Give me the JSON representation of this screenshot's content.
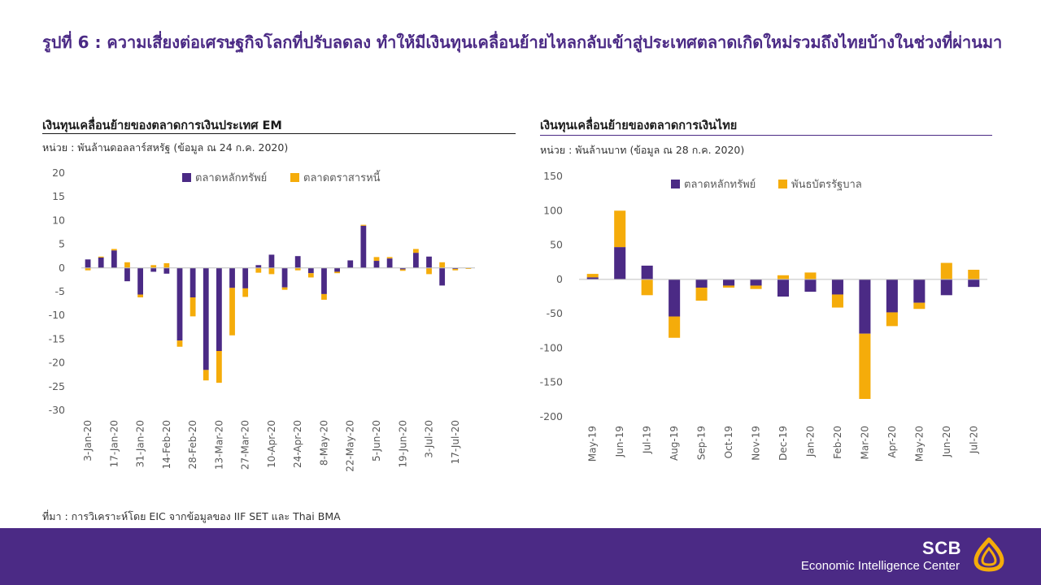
{
  "page": {
    "title": "รูปที่ 6 : ความเสี่ยงต่อเศรษฐกิจโลกที่ปรับลดลง ทำให้มีเงินทุนเคลื่อนย้ายไหลกลับเข้าสู่ประเทศตลาดเกิดใหม่รวมถึงไทยบ้างในช่วงที่ผ่านมา",
    "source": "ที่มา : การวิเคราะห์โดย EIC จากข้อมูลของ IIF SET และ Thai BMA"
  },
  "colors": {
    "primary": "#4b2a85",
    "secondary": "#f5ac0a",
    "footer_bg": "#4b2a85"
  },
  "brand": {
    "name": "SCB",
    "unit": "Economic Intelligence Center",
    "logo_icon": "scb-logo-icon"
  },
  "chart_data": [
    {
      "type": "bar",
      "stacked": true,
      "title": "เงินทุนเคลื่อนย้ายของตลาดการเงินประเทศ EM",
      "unit_note": "หน่วย : พันล้านดอลลาร์สหรัฐ (ข้อมูล ณ 24 ก.ค. 2020)",
      "xlabel": "",
      "ylabel": "",
      "ylim": [
        -30,
        20
      ],
      "yticks": [
        20,
        15,
        10,
        5,
        0,
        -5,
        -10,
        -15,
        -20,
        -25,
        -30
      ],
      "legend_position": "top",
      "grid": false,
      "tick_labels": [
        "3-Jan-20",
        "17-Jan-20",
        "31-Jan-20",
        "14-Feb-20",
        "28-Feb-20",
        "13-Mar-20",
        "27-Mar-20",
        "10-Apr-20",
        "24-Apr-20",
        "8-May-20",
        "22-May-20",
        "5-Jun-20",
        "19-Jun-20",
        "3-Jul-20",
        "17-Jul-20"
      ],
      "categories": [
        "3-Jan-20",
        "10-Jan-20",
        "17-Jan-20",
        "24-Jan-20",
        "31-Jan-20",
        "7-Feb-20",
        "14-Feb-20",
        "21-Feb-20",
        "28-Feb-20",
        "6-Mar-20",
        "13-Mar-20",
        "20-Mar-20",
        "27-Mar-20",
        "3-Apr-20",
        "10-Apr-20",
        "17-Apr-20",
        "24-Apr-20",
        "1-May-20",
        "8-May-20",
        "15-May-20",
        "22-May-20",
        "29-May-20",
        "5-Jun-20",
        "12-Jun-20",
        "19-Jun-20",
        "26-Jun-20",
        "3-Jul-20",
        "10-Jul-20",
        "17-Jul-20",
        "24-Jul-20"
      ],
      "series": [
        {
          "name": "ตลาดหลักทรัพย์",
          "color": "#4b2a85",
          "values": [
            1.8,
            2.2,
            3.7,
            -2.8,
            -5.6,
            -0.8,
            -1.2,
            -15.3,
            -6.2,
            -21.5,
            -17.5,
            -4.2,
            -4.3,
            0.6,
            2.8,
            -4.1,
            2.5,
            -1.1,
            -5.5,
            -0.8,
            1.6,
            8.9,
            1.5,
            2.0,
            -0.3,
            3.2,
            2.4,
            -3.7,
            -0.2,
            0
          ]
        },
        {
          "name": "ตลาดตราสารหนี้",
          "color": "#f5ac0a",
          "values": [
            -0.5,
            0.2,
            0.3,
            1.2,
            -0.6,
            0.6,
            1.0,
            -1.3,
            -4.0,
            -2.2,
            -6.7,
            -10.0,
            -1.8,
            -1.0,
            -1.3,
            -0.5,
            -0.5,
            -0.9,
            -1.2,
            -0.3,
            0.0,
            0.2,
            0.8,
            0.3,
            -0.3,
            0.8,
            -1.3,
            1.2,
            -0.3,
            -0.2
          ]
        }
      ]
    },
    {
      "type": "bar",
      "stacked": true,
      "title": "เงินทุนเคลื่อนย้ายของตลาดการเงินไทย",
      "unit_note": "หน่วย : พันล้านบาท (ข้อมูล ณ 28 ก.ค. 2020)",
      "xlabel": "",
      "ylabel": "",
      "ylim": [
        -200,
        150
      ],
      "yticks": [
        150,
        100,
        50,
        0,
        -50,
        -100,
        -150,
        -200
      ],
      "legend_position": "top",
      "grid": false,
      "categories": [
        "May-19",
        "Jun-19",
        "Jul-19",
        "Aug-19",
        "Sep-19",
        "Oct-19",
        "Nov-19",
        "Dec-19",
        "Jan-20",
        "Feb-20",
        "Mar-20",
        "Apr-20",
        "May-20",
        "Jun-20",
        "Jul-20"
      ],
      "tick_labels": [
        "May-19",
        "Jun-19",
        "Jul-19",
        "Aug-19",
        "Sep-19",
        "Oct-19",
        "Nov-19",
        "Dec-19",
        "Jan-20",
        "Feb-20",
        "Mar-20",
        "Apr-20",
        "May-20",
        "Jun-20",
        "Jul-20"
      ],
      "series": [
        {
          "name": "ตลาดหลักทรัพย์",
          "color": "#4b2a85",
          "values": [
            3,
            47,
            20,
            -54,
            -12,
            -9,
            -9,
            -25,
            -18,
            -22,
            -79,
            -48,
            -34,
            -23,
            -11
          ]
        },
        {
          "name": "พันธบัตรรัฐบาล",
          "color": "#f5ac0a",
          "values": [
            5,
            53,
            -23,
            -31,
            -19,
            -3,
            -5,
            6,
            10,
            -19,
            -95,
            -20,
            -9,
            24,
            14
          ]
        }
      ]
    }
  ]
}
